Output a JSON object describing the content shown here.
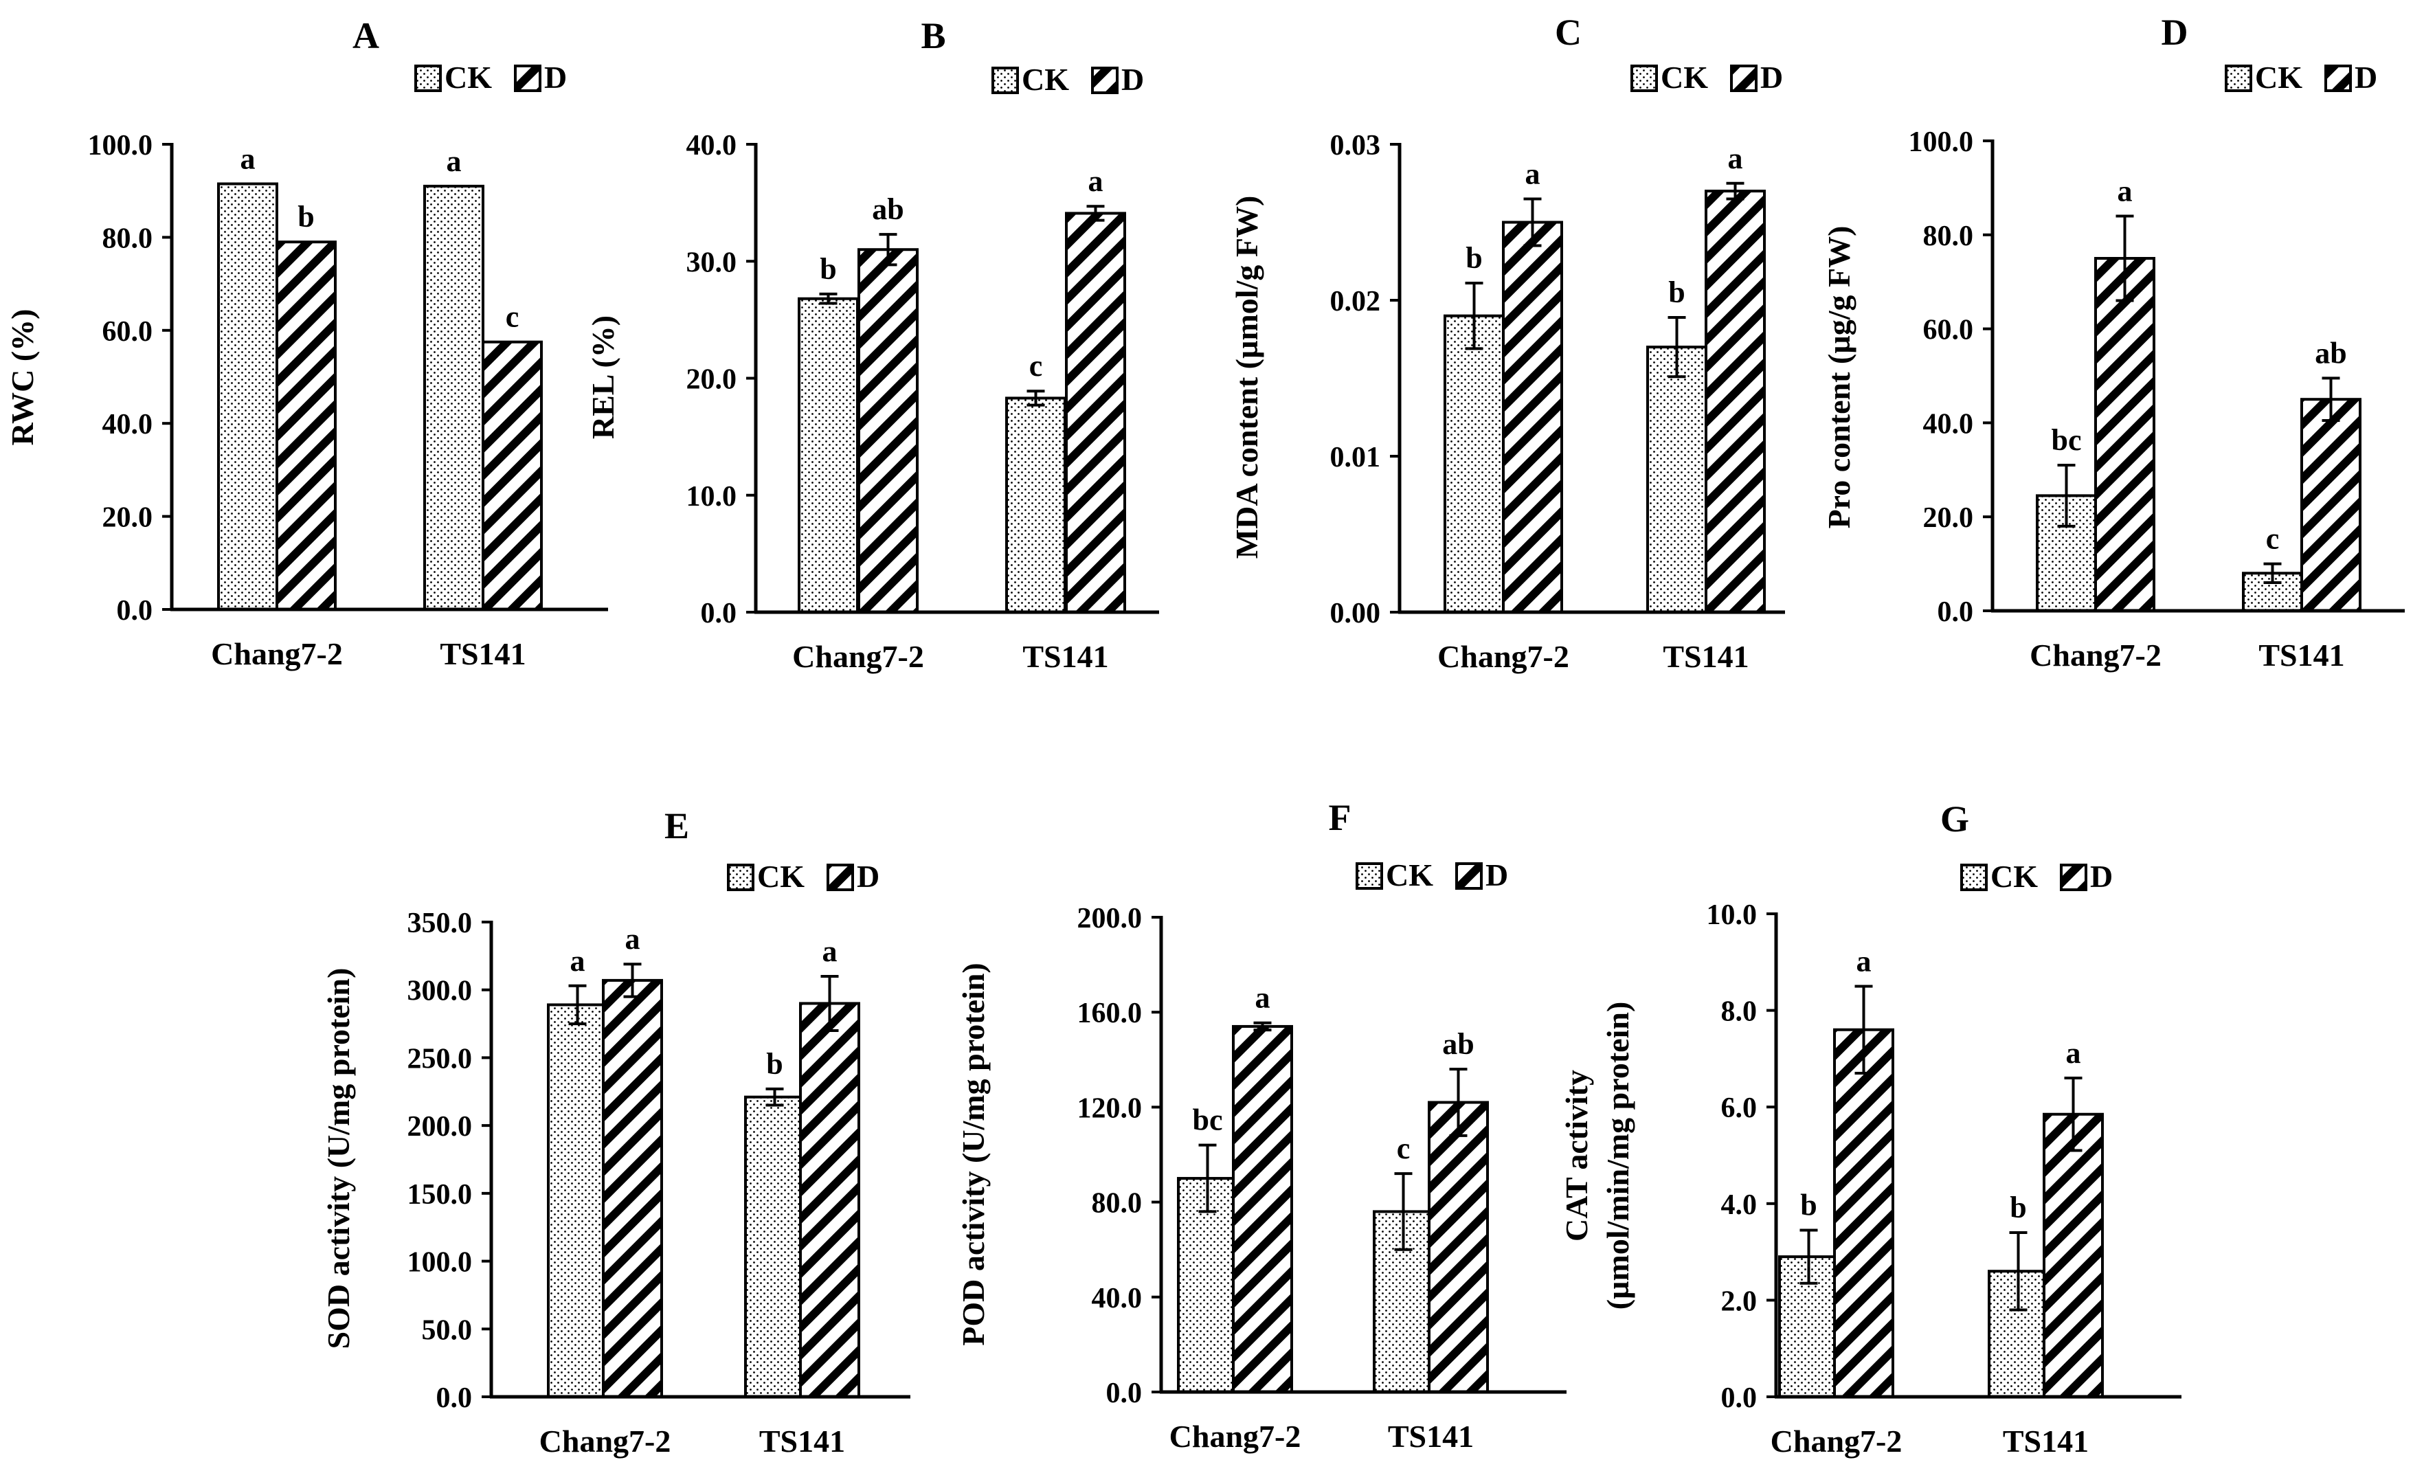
{
  "figure": {
    "style": {
      "ink": "#000000",
      "bar_fill": "#ffffff"
    }
  },
  "chart_data": [
    {
      "panel": "A",
      "type": "bar",
      "title": "A",
      "ylabel": "RWC (%)",
      "xlabel": "",
      "categories": [
        "Chang7-2",
        "TS141"
      ],
      "ylim": [
        0,
        100
      ],
      "yticks": [
        "0.0",
        "20.0",
        "40.0",
        "60.0",
        "80.0",
        "100.0"
      ],
      "legend": [
        "CK",
        "D"
      ],
      "series": [
        {
          "name": "CK",
          "values": [
            91.5,
            91.0
          ],
          "errors": [
            0,
            0
          ],
          "letters": [
            "a",
            "a"
          ]
        },
        {
          "name": "D",
          "values": [
            79.0,
            57.5
          ],
          "errors": [
            0,
            0
          ],
          "letters": [
            "b",
            "c"
          ]
        }
      ]
    },
    {
      "panel": "B",
      "type": "bar",
      "title": "B",
      "ylabel": "REL (%)",
      "xlabel": "",
      "categories": [
        "Chang7-2",
        "TS141"
      ],
      "ylim": [
        0,
        40
      ],
      "yticks": [
        "0.0",
        "10.0",
        "20.0",
        "30.0",
        "40.0"
      ],
      "legend": [
        "CK",
        "D"
      ],
      "series": [
        {
          "name": "CK",
          "values": [
            26.8,
            18.3
          ],
          "errors": [
            0.4,
            0.6
          ],
          "letters": [
            "b",
            "c"
          ]
        },
        {
          "name": "D",
          "values": [
            31.0,
            34.1
          ],
          "errors": [
            1.3,
            0.6
          ],
          "letters": [
            "ab",
            "a"
          ]
        }
      ]
    },
    {
      "panel": "C",
      "type": "bar",
      "title": "C",
      "ylabel": "MDA content (µmol/g FW)",
      "xlabel": "",
      "categories": [
        "Chang7-2",
        "TS141"
      ],
      "ylim": [
        0,
        0.03
      ],
      "yticks": [
        "0.00",
        "0.01",
        "0.02",
        "0.03"
      ],
      "legend": [
        "CK",
        "D"
      ],
      "series": [
        {
          "name": "CK",
          "values": [
            0.019,
            0.017
          ],
          "errors": [
            0.0021,
            0.0019
          ],
          "letters": [
            "b",
            "b"
          ]
        },
        {
          "name": "D",
          "values": [
            0.025,
            0.027
          ],
          "errors": [
            0.0015,
            0.0005
          ],
          "letters": [
            "a",
            "a"
          ]
        }
      ]
    },
    {
      "panel": "D",
      "type": "bar",
      "title": "D",
      "ylabel": "Pro content (µg/g  FW)",
      "xlabel": "",
      "categories": [
        "Chang7-2",
        "TS141"
      ],
      "ylim": [
        0,
        100
      ],
      "yticks": [
        "0.0",
        "20.0",
        "40.0",
        "60.0",
        "80.0",
        "100.0"
      ],
      "legend": [
        "CK",
        "D"
      ],
      "series": [
        {
          "name": "CK",
          "values": [
            24.5,
            8.0
          ],
          "errors": [
            6.5,
            2.0
          ],
          "letters": [
            "bc",
            "c"
          ]
        },
        {
          "name": "D",
          "values": [
            75.0,
            45.0
          ],
          "errors": [
            9.0,
            4.5
          ],
          "letters": [
            "a",
            "ab"
          ]
        }
      ]
    },
    {
      "panel": "E",
      "type": "bar",
      "title": "E",
      "ylabel": "SOD activity (U/mg protein)",
      "xlabel": "",
      "categories": [
        "Chang7-2",
        "TS141"
      ],
      "ylim": [
        0,
        350
      ],
      "yticks": [
        "0.0",
        "50.0",
        "100.0",
        "150.0",
        "200.0",
        "250.0",
        "300.0",
        "350.0"
      ],
      "legend": [
        "CK",
        "D"
      ],
      "series": [
        {
          "name": "CK",
          "values": [
            289,
            221
          ],
          "errors": [
            14,
            6
          ],
          "letters": [
            "a",
            "b"
          ]
        },
        {
          "name": "D",
          "values": [
            307,
            290
          ],
          "errors": [
            12,
            20
          ],
          "letters": [
            "a",
            "a"
          ]
        }
      ]
    },
    {
      "panel": "F",
      "type": "bar",
      "title": "F",
      "ylabel": "POD activity (U/mg protein)",
      "xlabel": "",
      "categories": [
        "Chang7-2",
        "TS141"
      ],
      "ylim": [
        0,
        200
      ],
      "yticks": [
        "0.0",
        "40.0",
        "80.0",
        "120.0",
        "160.0",
        "200.0"
      ],
      "legend": [
        "CK",
        "D"
      ],
      "series": [
        {
          "name": "CK",
          "values": [
            90,
            76
          ],
          "errors": [
            14,
            16
          ],
          "letters": [
            "bc",
            "c"
          ]
        },
        {
          "name": "D",
          "values": [
            154,
            122
          ],
          "errors": [
            1.5,
            14
          ],
          "letters": [
            "a",
            "ab"
          ]
        }
      ]
    },
    {
      "panel": "G",
      "type": "bar",
      "title": "G",
      "ylabel": [
        "CAT activity",
        "(µmol/min/mg protein)"
      ],
      "xlabel": "",
      "categories": [
        "Chang7-2",
        "TS141"
      ],
      "ylim": [
        0,
        10
      ],
      "yticks": [
        "0.0",
        "2.0",
        "4.0",
        "6.0",
        "8.0",
        "10.0"
      ],
      "legend": [
        "CK",
        "D"
      ],
      "series": [
        {
          "name": "CK",
          "values": [
            2.9,
            2.6
          ],
          "errors": [
            0.55,
            0.8
          ],
          "letters": [
            "b",
            "b"
          ]
        },
        {
          "name": "D",
          "values": [
            7.6,
            5.85
          ],
          "errors": [
            0.9,
            0.75
          ],
          "letters": [
            "a",
            "a"
          ]
        }
      ]
    }
  ]
}
